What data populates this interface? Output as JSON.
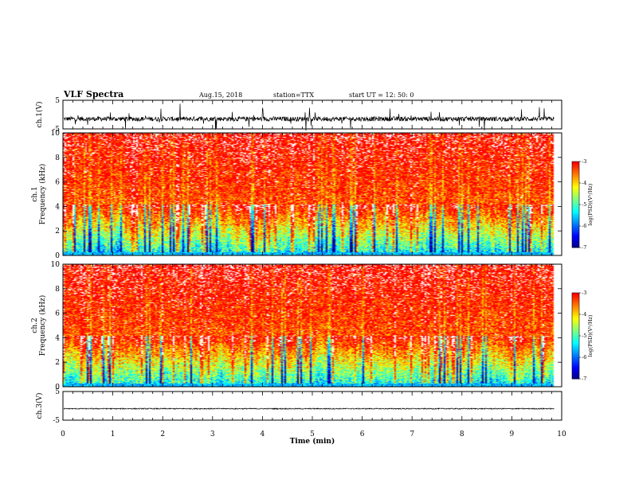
{
  "header": {
    "title": "VLF Spectra",
    "date": "Aug.15, 2018",
    "station": "station=TTX",
    "start": "start UT = 12: 50: 0"
  },
  "colors": {
    "jet": [
      "#00007f",
      "#0000ff",
      "#007fff",
      "#00ffff",
      "#7fff7f",
      "#ffff00",
      "#ff7f00",
      "#ff0000",
      "#ffffff"
    ],
    "trace": "#000000"
  },
  "chart_data": [
    {
      "type": "line",
      "name": "ch1-waveform",
      "ylabel": "ch.1(V)",
      "ylim": [
        -5,
        5
      ],
      "yticks": [
        "5",
        "-5"
      ],
      "baseline": -1.5,
      "noise": "bursty"
    },
    {
      "type": "heatmap",
      "name": "ch1-spectrogram",
      "ylabel_top": "ch.1",
      "ylabel": "Frequency (kHz)",
      "ylim": [
        0,
        10
      ],
      "yticks": [
        "0",
        "2",
        "4",
        "6",
        "8",
        "10"
      ],
      "colorbar": {
        "label": "log(PSD)(V²/Hz)",
        "range": [
          -7,
          -3
        ],
        "ticks": [
          "-3",
          "-4",
          "-5",
          "-6",
          "-7"
        ]
      }
    },
    {
      "type": "heatmap",
      "name": "ch2-spectrogram",
      "ylabel_top": "ch.2",
      "ylabel": "Frequency (kHz)",
      "ylim": [
        0,
        10
      ],
      "yticks": [
        "0",
        "2",
        "4",
        "6",
        "8",
        "10"
      ],
      "colorbar": {
        "label": "log(PSD)(V²/Hz)",
        "range": [
          -7,
          -3
        ],
        "ticks": [
          "-3",
          "-4",
          "-5",
          "-6",
          "-7"
        ]
      }
    },
    {
      "type": "line",
      "name": "ch3-waveform",
      "ylabel": "ch.3(V)",
      "ylim": [
        -5,
        5
      ],
      "yticks": [
        "5",
        "-5"
      ],
      "baseline": -1.0,
      "noise": "flat"
    }
  ],
  "xaxis": {
    "label": "Time (min)",
    "xlim": [
      0,
      10
    ],
    "ticks": [
      "0",
      "1",
      "2",
      "3",
      "4",
      "5",
      "6",
      "7",
      "8",
      "9",
      "10"
    ],
    "data_end": 9.85
  }
}
